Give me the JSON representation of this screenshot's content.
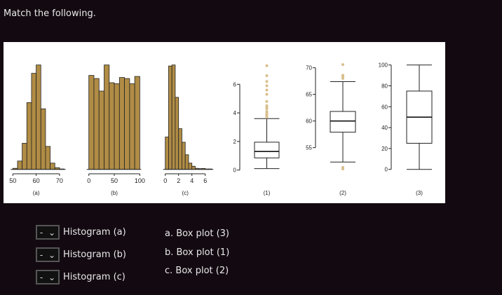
{
  "title": "Match the following.",
  "chart_data": [
    {
      "type": "bar",
      "label": "(a)",
      "bin_start": 50,
      "bin_width": 2,
      "relative_heights": [
        0.01,
        0.08,
        0.25,
        0.64,
        0.92,
        1.0,
        0.58,
        0.22,
        0.06,
        0.016,
        0.004
      ],
      "ticks": [
        "50",
        "60",
        "70"
      ],
      "tick_values": [
        50,
        60,
        70
      ]
    },
    {
      "type": "bar",
      "label": "(b)",
      "bin_start": 0,
      "bin_width": 10,
      "relative_heights": [
        0.9,
        0.87,
        0.75,
        1.0,
        0.83,
        0.82,
        0.88,
        0.87,
        0.82,
        0.89
      ],
      "ticks": [
        "0",
        "50",
        "100"
      ],
      "tick_values": [
        0,
        50,
        100
      ]
    },
    {
      "type": "bar",
      "label": "(c)",
      "bin_start": 0,
      "bin_width": 0.5,
      "relative_heights": [
        0.31,
        0.99,
        1.0,
        0.69,
        0.39,
        0.26,
        0.14,
        0.06,
        0.03,
        0.01,
        0.007,
        0.009,
        0.004,
        0.004
      ],
      "ticks": [
        "0",
        "2",
        "4",
        "6"
      ],
      "tick_values": [
        0,
        2,
        4,
        6
      ]
    },
    {
      "type": "box",
      "label": "(1)",
      "whisker_low": 0.1,
      "q1": 0.85,
      "median": 1.3,
      "q3": 1.95,
      "whisker_high": 3.6,
      "outliers": [
        3.7,
        3.8,
        3.9,
        4.0,
        4.1,
        4.3,
        4.4,
        4.5,
        4.8,
        5.3,
        5.6,
        5.9,
        6.2,
        6.6,
        7.3
      ],
      "ticks": [
        "0",
        "2",
        "4",
        "6"
      ],
      "tick_values": [
        0,
        2,
        4,
        6
      ]
    },
    {
      "type": "box",
      "label": "(2)",
      "whisker_low": 52.3,
      "q1": 57.9,
      "median": 60,
      "q3": 61.8,
      "whisker_high": 67.4,
      "outliers": [
        51.0,
        51.3,
        68.0,
        68.3,
        68.6,
        70.6
      ],
      "ticks": [
        "55",
        "60",
        "65",
        "70"
      ],
      "tick_values": [
        55,
        60,
        65,
        70
      ]
    },
    {
      "type": "box",
      "label": "(3)",
      "whisker_low": 0,
      "q1": 25,
      "median": 50,
      "q3": 75,
      "whisker_high": 100,
      "outliers": [],
      "ticks": [
        "0",
        "20",
        "40",
        "60",
        "80",
        "100"
      ],
      "tick_values": [
        0,
        20,
        40,
        60,
        80,
        100
      ]
    }
  ],
  "colors": {
    "bar": "#b08c45",
    "outlier": "#d9bf8c"
  },
  "questions": [
    {
      "select": "-",
      "label": "Histogram (a)"
    },
    {
      "select": "-",
      "label": "Histogram (b)"
    },
    {
      "select": "-",
      "label": "Histogram (c)"
    }
  ],
  "options": [
    "a. Box plot (3)",
    "b. Box plot (1)",
    "c. Box plot (2)"
  ]
}
